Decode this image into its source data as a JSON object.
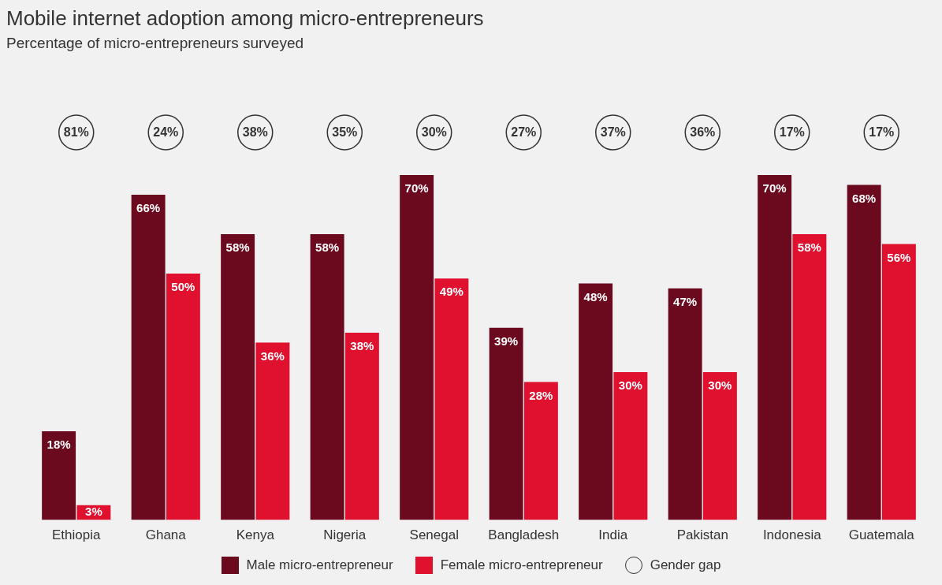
{
  "chart_data": {
    "type": "bar",
    "title": "Mobile internet adoption among micro-entrepreneurs",
    "subtitle": "Percentage of micro-entrepreneurs surveyed",
    "categories": [
      "Ethiopia",
      "Ghana",
      "Kenya",
      "Nigeria",
      "Senegal",
      "Bangladesh",
      "India",
      "Pakistan",
      "Indonesia",
      "Guatemala"
    ],
    "series": [
      {
        "name": "Male micro-entrepreneur",
        "color": "#6b0a1e",
        "values": [
          18,
          66,
          58,
          58,
          70,
          39,
          48,
          47,
          70,
          68
        ],
        "value_labels": [
          "18%",
          "66%",
          "58%",
          "58%",
          "70%",
          "39%",
          "48%",
          "47%",
          "70%",
          "68%"
        ]
      },
      {
        "name": "Female micro-entrepreneur",
        "color": "#e0102f",
        "values": [
          3,
          50,
          36,
          38,
          49,
          28,
          30,
          30,
          58,
          56
        ],
        "value_labels": [
          "3%",
          "50%",
          "36%",
          "38%",
          "49%",
          "28%",
          "30%",
          "30%",
          "58%",
          "56%"
        ]
      }
    ],
    "legend": "bottom",
    "grid": false,
    "tick_labels": "x",
    "annotations": [
      "81%",
      "24%",
      "38%",
      "35%",
      "30%",
      "27%",
      "37%",
      "36%",
      "17%",
      "17%",
      "Gender gap"
    ]
  }
}
